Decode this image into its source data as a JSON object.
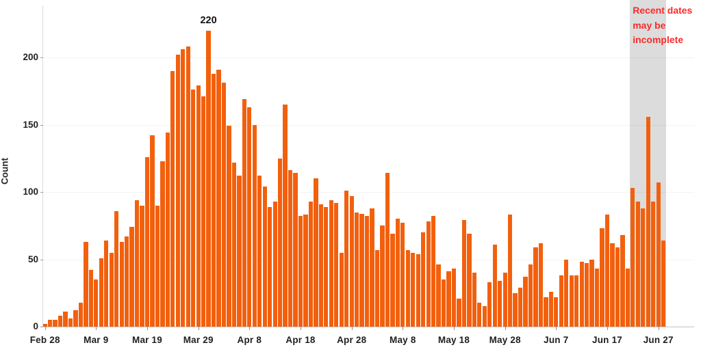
{
  "chart_data": {
    "type": "bar",
    "title": "",
    "xlabel": "",
    "ylabel": "Count",
    "ylim": [
      0,
      230
    ],
    "yticks": [
      0,
      50,
      100,
      150,
      200
    ],
    "x_tick_every": 10,
    "x_tick_labels": [
      "Feb 28",
      "Mar 9",
      "Mar 19",
      "Mar 29",
      "Apr 8",
      "Apr 18",
      "Apr 28",
      "May 8",
      "May 18",
      "May 28",
      "Jun 7",
      "Jun 17",
      "Jun 27"
    ],
    "legend": "none",
    "grid": "horizontal-faint",
    "bar_color": "#F2600E",
    "categories": [
      "Feb 28",
      "Feb 29",
      "Mar 1",
      "Mar 2",
      "Mar 3",
      "Mar 4",
      "Mar 5",
      "Mar 6",
      "Mar 7",
      "Mar 8",
      "Mar 9",
      "Mar 10",
      "Mar 11",
      "Mar 12",
      "Mar 13",
      "Mar 14",
      "Mar 15",
      "Mar 16",
      "Mar 17",
      "Mar 18",
      "Mar 19",
      "Mar 20",
      "Mar 21",
      "Mar 22",
      "Mar 23",
      "Mar 24",
      "Mar 25",
      "Mar 26",
      "Mar 27",
      "Mar 28",
      "Mar 29",
      "Mar 30",
      "Mar 31",
      "Apr 1",
      "Apr 2",
      "Apr 3",
      "Apr 4",
      "Apr 5",
      "Apr 6",
      "Apr 7",
      "Apr 8",
      "Apr 9",
      "Apr 10",
      "Apr 11",
      "Apr 12",
      "Apr 13",
      "Apr 14",
      "Apr 15",
      "Apr 16",
      "Apr 17",
      "Apr 18",
      "Apr 19",
      "Apr 20",
      "Apr 21",
      "Apr 22",
      "Apr 23",
      "Apr 24",
      "Apr 25",
      "Apr 26",
      "Apr 27",
      "Apr 28",
      "Apr 29",
      "Apr 30",
      "May 1",
      "May 2",
      "May 3",
      "May 4",
      "May 5",
      "May 6",
      "May 7",
      "May 8",
      "May 9",
      "May 10",
      "May 11",
      "May 12",
      "May 13",
      "May 14",
      "May 15",
      "May 16",
      "May 17",
      "May 18",
      "May 19",
      "May 20",
      "May 21",
      "May 22",
      "May 23",
      "May 24",
      "May 25",
      "May 26",
      "May 27",
      "May 28",
      "May 29",
      "May 30",
      "May 31",
      "Jun 1",
      "Jun 2",
      "Jun 3",
      "Jun 4",
      "Jun 5",
      "Jun 6",
      "Jun 7",
      "Jun 8",
      "Jun 9",
      "Jun 10",
      "Jun 11",
      "Jun 12",
      "Jun 13",
      "Jun 14",
      "Jun 15",
      "Jun 16",
      "Jun 17",
      "Jun 18",
      "Jun 19",
      "Jun 20",
      "Jun 21",
      "Jun 22",
      "Jun 23",
      "Jun 24",
      "Jun 25",
      "Jun 26",
      "Jun 27",
      "Jun 28"
    ],
    "values": [
      2,
      5,
      5,
      8,
      11,
      6,
      12,
      18,
      63,
      42,
      35,
      51,
      64,
      55,
      86,
      63,
      67,
      74,
      94,
      90,
      126,
      142,
      90,
      123,
      144,
      190,
      202,
      206,
      208,
      176,
      179,
      171,
      220,
      188,
      191,
      181,
      149,
      122,
      112,
      169,
      163,
      150,
      112,
      104,
      89,
      93,
      125,
      165,
      116,
      114,
      82,
      83,
      93,
      110,
      91,
      89,
      94,
      92,
      55,
      101,
      97,
      85,
      84,
      82,
      88,
      57,
      75,
      114,
      69,
      80,
      77,
      57,
      55,
      54,
      70,
      78,
      82,
      46,
      35,
      41,
      43,
      21,
      79,
      69,
      40,
      18,
      15,
      33,
      61,
      34,
      40,
      83,
      25,
      29,
      37,
      46,
      59,
      62,
      22,
      26,
      22,
      38,
      50,
      38,
      38,
      48,
      47,
      50,
      43,
      73,
      83,
      62,
      59,
      68,
      43,
      103,
      93,
      88,
      156,
      93,
      107,
      64
    ],
    "peak_annotation": {
      "label": "220",
      "category": "Mar 31",
      "index": 32
    },
    "incomplete_band": {
      "start_category": "Jun 22",
      "start_index": 115,
      "end_category": "Jun 28",
      "end_index": 121,
      "color": "#DCDCDC",
      "note_lines": [
        "Recent dates",
        "may be",
        "incomplete"
      ],
      "note_color": "#FA2A2A"
    }
  }
}
